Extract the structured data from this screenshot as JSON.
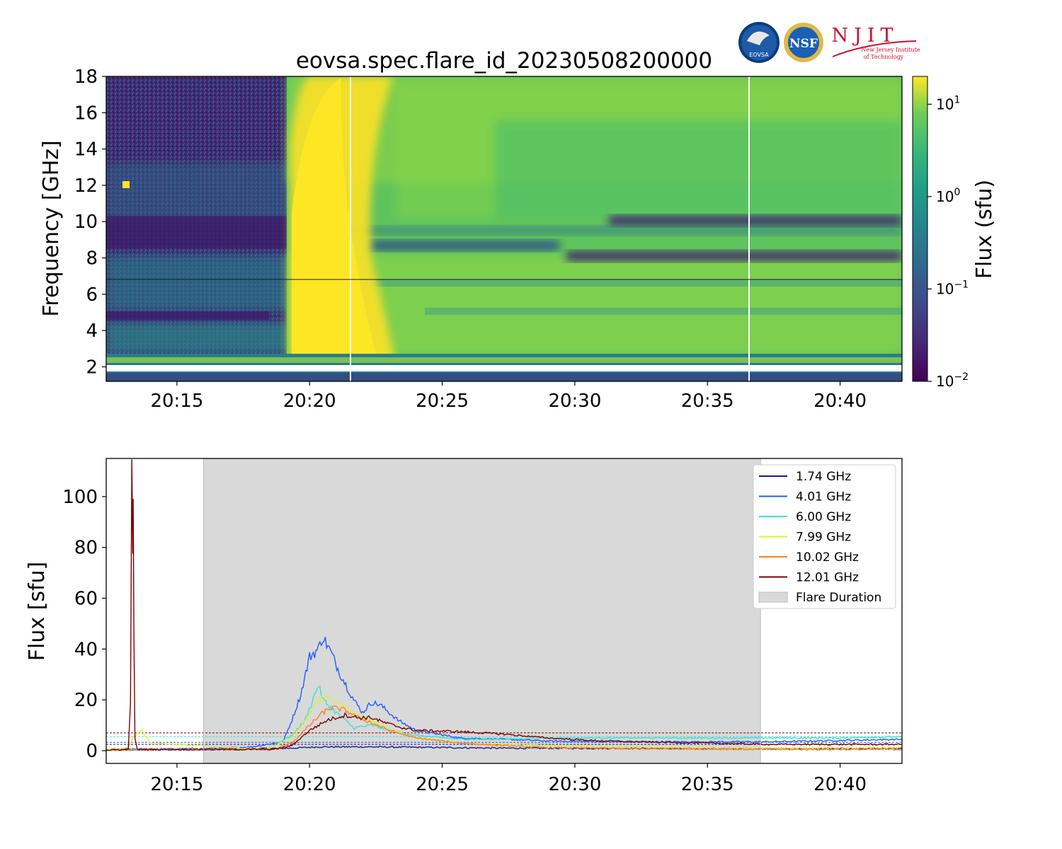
{
  "logos": {
    "eovsa": "EOVSA",
    "nsf": "NSF",
    "njit": "NJIT",
    "njit_line1": "New Jersey Institute",
    "njit_line2": "of Technology"
  },
  "colors": {
    "viridis_low": "#440154",
    "viridis_mid": "#21918c",
    "viridis_high": "#fde725",
    "flare_shade": "#d9d9d9"
  },
  "chart_data": [
    {
      "type": "heatmap",
      "title": "eovsa.spec.flare_id_20230508200000",
      "xlabel": "",
      "ylabel": "Frequency [GHz]",
      "xlim": [
        "20:12:20",
        "20:42:20"
      ],
      "ylim": [
        1.2,
        18
      ],
      "x_tick_labels": [
        "20:15",
        "20:20",
        "20:25",
        "20:30",
        "20:35",
        "20:40"
      ],
      "y_ticks": [
        2,
        4,
        6,
        8,
        10,
        12,
        14,
        16,
        18
      ],
      "colorbar": {
        "label": "Flux  (sfu)",
        "scale": "log",
        "range": [
          0.01,
          20
        ],
        "ticks": [
          {
            "base": "10",
            "exp": "1",
            "value": 10
          },
          {
            "base": "10",
            "exp": "0",
            "value": 1
          },
          {
            "base": "10",
            "exp": "−1",
            "value": 0.1
          },
          {
            "base": "10",
            "exp": "−2",
            "value": 0.01
          }
        ]
      }
    },
    {
      "type": "line",
      "title": "",
      "xlabel": "",
      "ylabel": "Flux [sfu]",
      "xlim": [
        "20:12:20",
        "20:42:20"
      ],
      "ylim": [
        -5,
        115
      ],
      "x_tick_labels": [
        "20:15",
        "20:20",
        "20:25",
        "20:30",
        "20:35",
        "20:40"
      ],
      "y_ticks": [
        0,
        20,
        40,
        60,
        80,
        100
      ],
      "legend": "top-right",
      "flare_duration": {
        "label": "Flare Duration",
        "start": "20:16:00",
        "end": "20:37:00"
      },
      "series": [
        {
          "name": "1.74 GHz",
          "color": "#1a1a8c",
          "points": [
            [
              0,
              0.3
            ],
            [
              230,
              0.5
            ],
            [
              420,
              1.0
            ],
            [
              480,
              1.5
            ],
            [
              600,
              1.5
            ],
            [
              900,
              1.0
            ],
            [
              1500,
              0.8
            ],
            [
              1800,
              0.8
            ]
          ]
        },
        {
          "name": "4.01 GHz",
          "color": "#1f5bff",
          "points": [
            [
              0,
              0.5
            ],
            [
              230,
              0.8
            ],
            [
              330,
              1.5
            ],
            [
              400,
              3.5
            ],
            [
              420,
              12
            ],
            [
              440,
              22
            ],
            [
              460,
              37
            ],
            [
              480,
              40
            ],
            [
              490,
              45
            ],
            [
              510,
              38
            ],
            [
              530,
              30
            ],
            [
              560,
              20
            ],
            [
              580,
              15
            ],
            [
              600,
              19
            ],
            [
              620,
              18
            ],
            [
              660,
              12
            ],
            [
              700,
              8
            ],
            [
              800,
              5
            ],
            [
              900,
              4.5
            ],
            [
              1000,
              3.8
            ],
            [
              1200,
              3.5
            ],
            [
              1350,
              3.5
            ],
            [
              1500,
              3.5
            ],
            [
              1650,
              4.0
            ],
            [
              1800,
              4.5
            ]
          ]
        },
        {
          "name": "6.00 GHz",
          "color": "#40e0d0",
          "points": [
            [
              0,
              0.3
            ],
            [
              360,
              0.5
            ],
            [
              420,
              6
            ],
            [
              450,
              12
            ],
            [
              480,
              26
            ],
            [
              490,
              20
            ],
            [
              520,
              15
            ],
            [
              560,
              9
            ],
            [
              600,
              10
            ],
            [
              640,
              8
            ],
            [
              700,
              6
            ],
            [
              800,
              4.5
            ],
            [
              900,
              4.5
            ],
            [
              1000,
              5
            ],
            [
              1100,
              5
            ],
            [
              1200,
              5
            ],
            [
              1350,
              5
            ],
            [
              1500,
              5
            ],
            [
              1650,
              5
            ],
            [
              1800,
              5.5
            ]
          ]
        },
        {
          "name": "7.99 GHz",
          "color": "#dcf03c",
          "points": [
            [
              0,
              0.5
            ],
            [
              50,
              1
            ],
            [
              60,
              5
            ],
            [
              80,
              8
            ],
            [
              100,
              3
            ],
            [
              360,
              0.5
            ],
            [
              420,
              5
            ],
            [
              450,
              12
            ],
            [
              480,
              20
            ],
            [
              500,
              21
            ],
            [
              530,
              18
            ],
            [
              570,
              14
            ],
            [
              600,
              12
            ],
            [
              650,
              8
            ],
            [
              700,
              5
            ],
            [
              800,
              3
            ],
            [
              900,
              2.5
            ],
            [
              1000,
              2
            ],
            [
              1200,
              1.5
            ],
            [
              1400,
              1
            ],
            [
              1600,
              1
            ],
            [
              1780,
              1.2
            ],
            [
              1800,
              1.2
            ]
          ]
        },
        {
          "name": "10.02 GHz",
          "color": "#ff7f1e",
          "points": [
            [
              0,
              0.2
            ],
            [
              380,
              0.5
            ],
            [
              420,
              3
            ],
            [
              460,
              10
            ],
            [
              490,
              15
            ],
            [
              510,
              17
            ],
            [
              540,
              16
            ],
            [
              570,
              13
            ],
            [
              600,
              11
            ],
            [
              640,
              8
            ],
            [
              700,
              5
            ],
            [
              800,
              3
            ],
            [
              900,
              2
            ],
            [
              1000,
              1.2
            ],
            [
              1200,
              0.8
            ],
            [
              1500,
              0.5
            ],
            [
              1800,
              0.5
            ]
          ]
        },
        {
          "name": "12.01 GHz",
          "color": "#7f0000",
          "points": [
            [
              0,
              0.2
            ],
            [
              50,
              0.5
            ],
            [
              55,
              20
            ],
            [
              58,
              110
            ],
            [
              60,
              80
            ],
            [
              61,
              94
            ],
            [
              63,
              40
            ],
            [
              65,
              5
            ],
            [
              70,
              0.5
            ],
            [
              380,
              0.5
            ],
            [
              420,
              2
            ],
            [
              460,
              8
            ],
            [
              500,
              12
            ],
            [
              540,
              14
            ],
            [
              570,
              13
            ],
            [
              600,
              13
            ],
            [
              630,
              11
            ],
            [
              670,
              9
            ],
            [
              700,
              8
            ],
            [
              800,
              7.5
            ],
            [
              900,
              6.5
            ],
            [
              1000,
              5
            ],
            [
              1100,
              4
            ],
            [
              1200,
              3.5
            ],
            [
              1350,
              3
            ],
            [
              1500,
              2.5
            ],
            [
              1650,
              2.5
            ],
            [
              1800,
              2.5
            ]
          ]
        }
      ],
      "reference_lines": [
        {
          "value": 7,
          "color": "#7f0000"
        },
        {
          "value": 5.5,
          "color": "#40e0d0"
        },
        {
          "value": 3.3,
          "color": "#1f5bff"
        },
        {
          "value": 2.5,
          "color": "#1a1a8c"
        }
      ]
    }
  ]
}
